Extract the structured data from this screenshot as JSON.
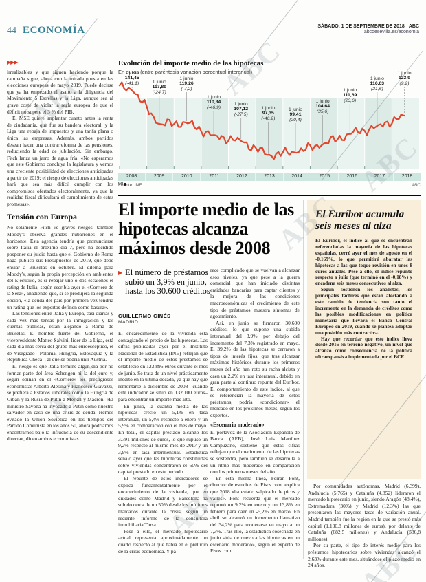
{
  "watermark": {
    "text": "ABC"
  },
  "header": {
    "page_number": "44",
    "section": "ECONOMÍA",
    "date_line": "SÁBADO, 1 DE SEPTIEMBRE DE 2018",
    "brand": "ABC",
    "site_line": "abcdesevilla.es/economia"
  },
  "colors": {
    "section_teal": "#2f7f95",
    "accent_red": "#d93a20",
    "chart_line": "#e0472e",
    "axis_band": "#cde7e0",
    "sidebar_bg": "#f9eed9"
  },
  "left_column": {
    "continuation_marker": "▶▶▶",
    "paragraphs_top": [
      "irrealizables y que siguen haciendo porque la campaña sigue, ahora con la mirada puesta en las elecciones europeas de mayo 2019. Puede decirse que ya ha empezado el asalto a la diligencia del Movimiento 5 Estrellas y la Liga, aunque sea al grave coste de violar la regla europea de que el déficit no supere el 3 % del PIB.",
      "El M5E quiere implantar cuanto antes la renta de ciudadanía, que fue su bandera electoral, y la Liga una rebaja de impuestos y una tarifa plana o única las empresas. Además, ambos partidos desean hacer una contrarreforma de las pensiones, reduciendo la edad de jubilación. Sin embargo, Fitch lanza un jarro de agua fría: «No esperamos que este Gobierno concluya la legislatura y vemos una creciente posibilidad de elecciones anticipadas a partir de 2019; el riesgo de elecciones anticipadas hará que sea más difícil cumplir con los compromisos ofertados electoralmente, ya que la realidad fiscal dificultará el cumplimiento de estas promesas»."
    ],
    "subhead": "Tensión con Europa",
    "paragraphs_bottom": [
      "No solamente Fitch ve graves riesgos, también Moody's observa grandes nubarrones en el horizonte. Esta agencia tendría que pronunciarse sobre Italia el próximo día 7, pero ha decidido posponer su juicio hasta que el Gobierno de Roma haga público sus Presupuestos de 2019, que debe enviar a Bruselas en octubre. El dilema para Moody's, según la propia percepción en ambientes del Ejecutivo, es si rebajar uno o dos escalones el rating de Italia, según escribía ayer el «Corriere de la Sera», añadiendo que, si se produjera la segunda opción, «la deuda del país por primera vez tendría un rating que los expertos definen como basura».",
      "Las tensiones entre Italia y Europa, casi diarias y cada vez más tensas por la inmigración y las cuentas públicas, están alejando a Roma de Bruselas. El hombre fuerte del Gobierno, el vicepresidente Matteo Salvini, líder de la Liga, está cada día más cerca del grupo más euroescéptico, el de Visegrado –Polonia, Hungría, Eslovaquia y la República Checa–, al que se podría unir Austria.",
      "El riesgo es que Italia termine algún día por no formar parte del área Schengen ni la del euro y, según opinan en el «Corriere» los prestigiosos economistas Alberto Alesina y Francesco Giavazzi, se prefiera a Estados iliberales como la Hungría de Orbán y la Rusia de Putin a Merkel y Macron. «El ministro Savona ha invocado a Putin como nuestro salvador en caso de una crisis de deuda. Hemos evitado la Unión Soviética en los tiempos del Partido Comunista en los años 50, ahora podríamos encontrarnos bajo la influencia de su descendiente directa», dicen ambos economistas."
    ]
  },
  "chart_data": {
    "type": "line",
    "title": "Evolución del importe medio de las hipotecas",
    "subtitle": "En euros (entre paréntesis variación porcentual interanual)",
    "x_years": [
      "2008",
      "2009",
      "2010",
      "2011",
      "2012",
      "2013",
      "2014",
      "2015",
      "2016",
      "2017",
      "2018"
    ],
    "y_baseline_label": "90",
    "ylim": [
      90,
      145
    ],
    "points": [
      {
        "label": "1 junio",
        "value": 141.45,
        "value_text": "141,45",
        "variation_text": "(-41,1)"
      },
      {
        "label": "1 junio",
        "value": 117.89,
        "value_text": "117,89",
        "variation_text": "(-24,7)"
      },
      {
        "label": "1 junio",
        "value": 119.26,
        "value_text": "119,26",
        "variation_text": "(-7,2)"
      },
      {
        "label": "1 junio",
        "value": 110.34,
        "value_text": "110,34",
        "variation_text": "(-46,9)"
      },
      {
        "label": "1 junio",
        "value": 107.12,
        "value_text": "107,12",
        "variation_text": "(-27,5)"
      },
      {
        "label": "1 junio",
        "value": 97.35,
        "value_text": "97,35",
        "variation_text": "(-46,2)"
      },
      {
        "label": "1 junio",
        "value": 99.41,
        "value_text": "99,41",
        "variation_text": "(20,4)"
      },
      {
        "label": "1 junio",
        "value": 104.64,
        "value_text": "104,64",
        "variation_text": "(35,6)"
      },
      {
        "label": "1 junio",
        "value": 111.69,
        "value_text": "111,69",
        "variation_text": "(23,6)"
      },
      {
        "label": "1 junio",
        "value": 116.63,
        "value_text": "116,63",
        "variation_text": "(21,6)"
      },
      {
        "label": "1 junio",
        "value": 123.9,
        "value_text": "123,9",
        "variation_text": "(9,2)"
      }
    ],
    "source": "Fuente: INE",
    "credit": "ABC",
    "line_color": "#e0472e",
    "legend_position": "none",
    "grid": "vertical-year-bands"
  },
  "article": {
    "headline": "El importe medio de las hipotecas alcanza máximos desde 2008",
    "standfirst": "El número de préstamos subió un 3,9% en junio, hasta los 30.600 créditos",
    "byline": "GUILLERMO GINÉS",
    "byline_city": "MADRID",
    "col1_paragraphs": [
      "El encarecimiento de la vivienda está contagiando el precio de las hipotecas. Las cifras publicadas ayer por el Instituto Nacional de Estadística (INE) reflejan que el importe medio de estos préstamos se estableció en 123.896 euros durante el mes de junio. Se trata de un nivel prácticamente inédito en la última década, ya que hay que remontarse a diciembre de 2008 –cuando este indicador se situó en 132.100 euros– para encontrar un importe más alto.",
      "En junio, la cuantía media de las hipotecas creció un 5,1% en tasa interanual, un 5,4% respecto a enero y un 5,9% en comparación con el mes de mayo. En total, el capital prestado alcanzó los 3.791 millones de euros, lo que supuso un 9,2% respecto al mismo mes de 2017 y un 3,9% en tasa intermensual. Estadística señaló ayer que las hipotecas constituidas sobre viviendas concentraron el 60% del capital prestado en este periodo.",
      "El repunte de estos indicadores se explica fundamentalmente por el encarecimiento de la vivienda, que en ciudades como Madrid y Barcelona ha subido cerca de un 50% desde los mínimos marcados durante la crisis, según un reciente informe de la consultora inmobiliaria Tinsa.",
      "Pese a ello, el mercado hipotecario actual representa aproximadamente un cuarto respecto al que había en el preludio de la crisis económica. Y pa-"
    ],
    "col2_paragraphs_top": [
      "rece complicado que se vuelvan a alcanzar esos niveles, ya que pese a la guerra comercial que han iniciado distintas entidades bancarias para captar clientes y la mejora de las condiciones macroeconómicas el crecimiento de este tipo de préstamos muestra síntomas de agotamiento.",
      "Así, en junio se firmaron 30.600 créditos, lo que supone una subida interanual del 3,9%, por debajo del incremento del 7,3% registrado en mayo. El 39,2% de las hipotecas se cerraron a tipos de interés fijos, que tras alcanzar máximos históricos durante los primeros meses del año han roto su racha alcista y caen un 2,2% en tasa interanual, debido en gran parte al continuo repunte del Euríbor. El comportamiento de este índice, al que se referencian la mayoría de estos préstamos, podría «condicionar» el mercado en los próximos meses, según los expertos."
    ],
    "col2_subhead": "«Escenario moderado»",
    "col2_paragraphs_bottom": [
      "El portavoz de la Asociación Española de Banca (AEB), José Luis Martínez Campuzano, sostiene que estas cifras reflejan que el crecimiento de las hipotecas se sostendrá, pero también se desarrolla a un ritmo más moderado en comparación con los primeros meses del año.",
      "En esta misma línea, Ferran Font, director de estudios de Pisos.com, explica que 2018 «ha estado salpicado de picos y valles». Font recuerda que el mercado repuntó un 9,2% en enero y un 13,8% en febrero para caer un -5,2% en marzo. En abril se alcanzó un incremento llamativo del 34,2% para moderarse en mayo a un 7,3%. Tras ello, la estadística cosechada en junio sitúa de nuevo a las hipotecas en un escenario moderado», según el experto de Pisos.com."
    ],
    "col3_paragraphs": [
      "Por comunidades autónomas, Madrid (6.399), Andalucía (5.765) y Cataluña (4.852) lideraron el mercado hipotecario en junio, siendo Aragón (48,4%), Extremadura (30%) y Madrid (12,3%) las que presentaron las mayores tasas de variación anual. Madrid también fue la región en la que se prestó más capital (1.130,8 millones de euros), por delante de Cataluña (682,5 millones) y Andalucía (586,8 millones).",
      "Por su parte, el tipo de interés medio para los préstamos hipotecarios sobre viviendas alcanzó el 2,63% durante este mes, situándose el plazo medio en 24 años."
    ]
  },
  "sidebar": {
    "title": "El Euríbor acumula seis meses al alza",
    "paragraphs": [
      "El Euríbor, el índice al que se encuentran referenciadas la mayoría de las hipotecas españolas, cerró ayer el mes de agosto en el -0,169%, lo que permitirá abaratar las hipotecas a las que toque revisión en unos 8 euros anuales. Pese a ello, el índice repuntó respecto a julio (que terminó en el -0,18%) y encadena seis meses consecutivos al alza.",
      "Según sostienen los analistas, los principales factores que están afectando a este cambio de tendencia son tanto el incremento en la demanda de créditos como las posibles modificaciones en política monetaria que llevará el Banco Central Europeo en 2019, cuando se plantea adoptar una posición más contractiva.",
      "Hay que recordar que este índice lleva desde 2016 en terreno negativo, un nivel que alcanzó como consecuencia de la política ultraexpansiva implementada por el BCE."
    ]
  }
}
